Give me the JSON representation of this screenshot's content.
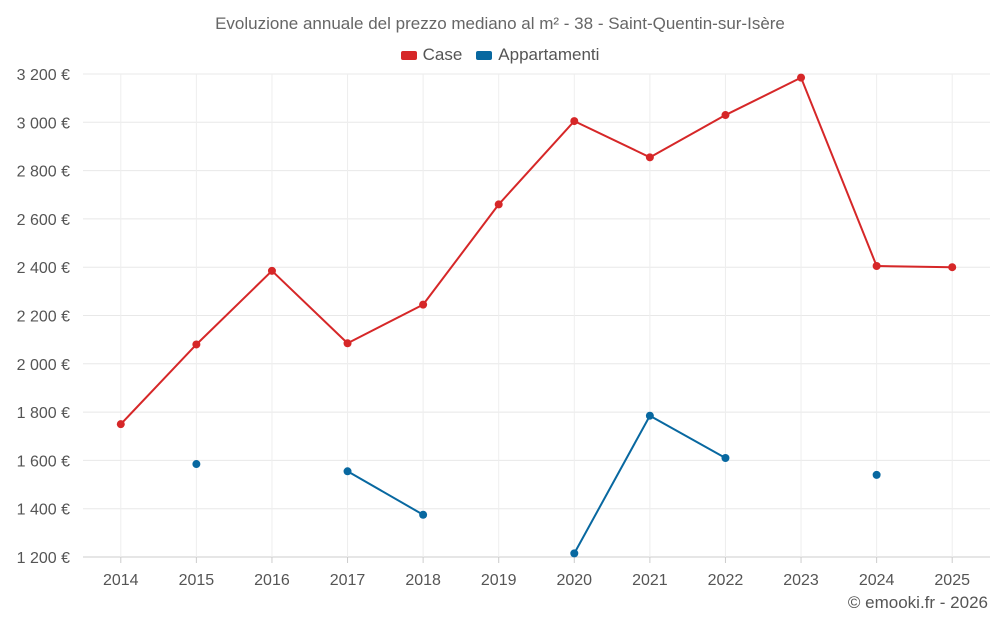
{
  "chart_data": {
    "type": "line",
    "title": "Evoluzione annuale del prezzo mediano al m² - 38 - Saint-Quentin-sur-Isère",
    "categories": [
      "2014",
      "2015",
      "2016",
      "2017",
      "2018",
      "2019",
      "2020",
      "2021",
      "2022",
      "2023",
      "2024",
      "2025"
    ],
    "y_ticks": [
      "1 200 €",
      "1 400 €",
      "1 600 €",
      "1 800 €",
      "2 000 €",
      "2 200 €",
      "2 400 €",
      "2 600 €",
      "2 800 €",
      "3 000 €",
      "3 200 €"
    ],
    "ylim": [
      1200,
      3200
    ],
    "grid": true,
    "legend_position": "top-center",
    "series": [
      {
        "name": "Case",
        "color": "#d62728",
        "values": [
          1750,
          2080,
          2385,
          2085,
          2245,
          2660,
          3005,
          2855,
          3030,
          3185,
          2405,
          2400
        ]
      },
      {
        "name": "Appartamenti",
        "color": "#0868a0",
        "values": [
          null,
          1585,
          null,
          1555,
          1375,
          null,
          1215,
          1785,
          1610,
          null,
          1540,
          null
        ]
      }
    ]
  },
  "credit": "© emooki.fr - 2026"
}
